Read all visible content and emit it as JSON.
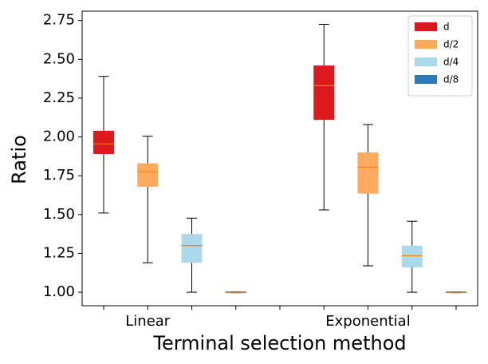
{
  "chart_data": {
    "type": "box",
    "xlabel": "Terminal selection method",
    "ylabel": "Ratio",
    "categories": [
      "Linear",
      "Exponential"
    ],
    "ylim": [
      0.913,
      2.81
    ],
    "yticks": [
      {
        "value": 1,
        "label": "1.00"
      },
      {
        "value": 1.25,
        "label": "1.25"
      },
      {
        "value": 1.5,
        "label": "1.50"
      },
      {
        "value": 1.75,
        "label": "1.75"
      },
      {
        "value": 2,
        "label": "2.00"
      },
      {
        "value": 2.25,
        "label": "2.25"
      },
      {
        "value": 2.5,
        "label": "2.50"
      },
      {
        "value": 2.75,
        "label": "2.75"
      }
    ],
    "legend": "upper right",
    "median_color": "#ff7f0e",
    "series": [
      {
        "name": "d",
        "color": "#dc1a1e",
        "min": [
          1.51,
          1.53
        ],
        "q1": [
          1.89,
          2.11
        ],
        "median": [
          1.955,
          2.33
        ],
        "q3": [
          2.04,
          2.46
        ],
        "max": [
          2.39,
          2.725
        ]
      },
      {
        "name": "d/2",
        "color": "#fdaa5e",
        "min": [
          1.19,
          1.17
        ],
        "q1": [
          1.68,
          1.635
        ],
        "median": [
          1.775,
          1.805
        ],
        "q3": [
          1.83,
          1.9
        ],
        "max": [
          2.005,
          2.08
        ]
      },
      {
        "name": "d/4",
        "color": "#acd9ea",
        "min": [
          1.0,
          1.0
        ],
        "q1": [
          1.19,
          1.16
        ],
        "median": [
          1.3,
          1.235
        ],
        "q3": [
          1.375,
          1.3
        ],
        "max": [
          1.477,
          1.457
        ]
      },
      {
        "name": "d/8",
        "color": "#2c7bb6",
        "min": [
          0.997,
          0.997
        ],
        "q1": [
          0.995,
          0.995
        ],
        "median": [
          1.0,
          1.0
        ],
        "q3": [
          1.005,
          1.005
        ],
        "max": [
          1.003,
          1.003
        ]
      }
    ]
  }
}
